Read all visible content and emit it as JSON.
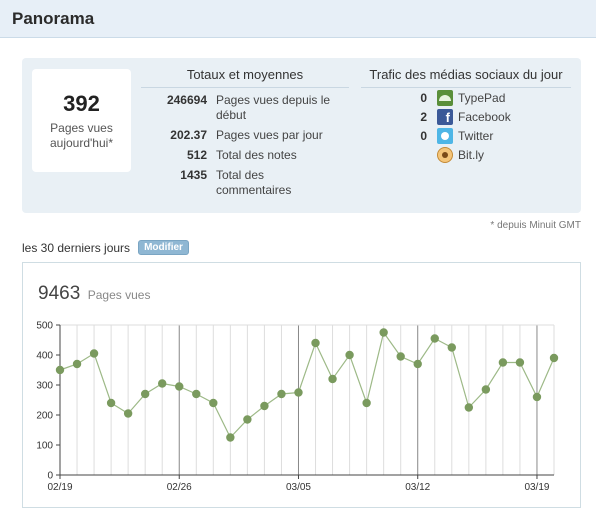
{
  "header": {
    "title": "Panorama"
  },
  "today": {
    "value": "392",
    "label_line1": "Pages vues",
    "label_line2": "aujourd'hui*"
  },
  "totals": {
    "title": "Totaux et moyennes",
    "rows": [
      {
        "value": "246694",
        "line1": "Pages vues depuis le",
        "line2": "début"
      },
      {
        "value": "202.37",
        "line1": "Pages vues par jour",
        "line2": ""
      },
      {
        "value": "512",
        "line1": "Total des notes",
        "line2": ""
      },
      {
        "value": "1435",
        "line1": "Total des",
        "line2": "commentaires"
      }
    ]
  },
  "social": {
    "title": "Trafic des médias sociaux du jour",
    "rows": [
      {
        "value": "0",
        "label": "TypePad",
        "icon": "typepad-icon"
      },
      {
        "value": "2",
        "label": "Facebook",
        "icon": "facebook-icon"
      },
      {
        "value": "0",
        "label": "Twitter",
        "icon": "twitter-icon"
      },
      {
        "value": "",
        "label": "Bit.ly",
        "icon": "bitly-icon"
      }
    ]
  },
  "footnote": "* depuis Minuit GMT",
  "range": {
    "label": "les 30 derniers jours",
    "edit_button": "Modifier"
  },
  "chart_total": {
    "value": "9463",
    "unit": "Pages vues"
  },
  "colors": {
    "line": "#9db987",
    "marker": "#7a9a5e",
    "grid": "#dddddd",
    "major_grid": "#888888",
    "header_bg": "#e7eff7",
    "panel_bg": "#e9f0f5"
  },
  "chart_data": {
    "type": "line",
    "title": "",
    "xlabel": "",
    "ylabel": "",
    "ylim": [
      0,
      500
    ],
    "yticks": [
      0,
      100,
      200,
      300,
      400,
      500
    ],
    "x": [
      "02/19",
      "02/20",
      "02/21",
      "02/22",
      "02/23",
      "02/24",
      "02/25",
      "02/26",
      "02/27",
      "02/28",
      "03/01",
      "03/02",
      "03/03",
      "03/04",
      "03/05",
      "03/06",
      "03/07",
      "03/08",
      "03/09",
      "03/10",
      "03/11",
      "03/12",
      "03/13",
      "03/14",
      "03/15",
      "03/16",
      "03/17",
      "03/18",
      "03/19",
      "03/20"
    ],
    "xtick_labels": [
      "02/19",
      "02/26",
      "03/05",
      "03/12",
      "03/19"
    ],
    "values": [
      350,
      370,
      405,
      240,
      205,
      270,
      305,
      295,
      270,
      240,
      125,
      185,
      230,
      270,
      275,
      440,
      320,
      400,
      240,
      475,
      395,
      370,
      455,
      425,
      225,
      285,
      375,
      375,
      260,
      390
    ],
    "grid": true
  }
}
